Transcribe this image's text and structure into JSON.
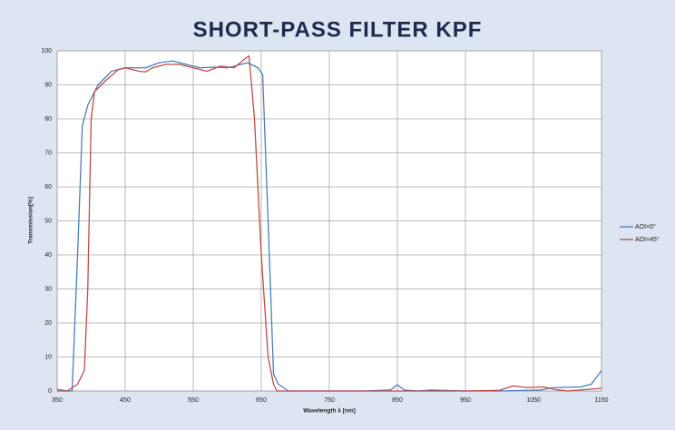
{
  "chart_data": {
    "type": "line",
    "title": "SHORT-PASS FILTER KPF",
    "x_label": "Wavelength λ [nm]",
    "y_label": "Transmission[%]",
    "xlim": [
      350,
      1150
    ],
    "xticks": [
      350,
      450,
      550,
      650,
      750,
      850,
      950,
      1050,
      1150
    ],
    "ylim": [
      0,
      100
    ],
    "yticks": [
      0,
      10,
      20,
      30,
      40,
      50,
      60,
      70,
      80,
      90,
      100
    ],
    "grid": true,
    "legend": "right",
    "series": [
      {
        "name": "AOI=0°",
        "color": "#4a7ebb",
        "x": [
          350,
          365,
          372,
          380,
          387,
          395,
          410,
          430,
          450,
          480,
          500,
          520,
          540,
          560,
          580,
          600,
          620,
          630,
          645,
          652,
          660,
          668,
          675,
          690,
          750,
          800,
          840,
          850,
          860,
          880,
          900,
          950,
          1000,
          1060,
          1080,
          1120,
          1135,
          1150
        ],
        "values": [
          0.5,
          0,
          0,
          40,
          78,
          84,
          90,
          94,
          95,
          95,
          96.5,
          97,
          96,
          95,
          95.2,
          95,
          96,
          96.5,
          95,
          93,
          50,
          5,
          2,
          0,
          0,
          0,
          0.3,
          1.8,
          0.3,
          0,
          0.3,
          0,
          0,
          0.3,
          1,
          1.2,
          2,
          6
        ]
      },
      {
        "name": "AOI=45°",
        "color": "#be4b48",
        "x": [
          350,
          365,
          380,
          390,
          395,
          400,
          405,
          420,
          440,
          450,
          470,
          480,
          490,
          510,
          530,
          550,
          570,
          590,
          610,
          625,
          632,
          640,
          650,
          660,
          668,
          673,
          750,
          850,
          950,
          1000,
          1020,
          1040,
          1065,
          1080,
          1100,
          1150
        ],
        "values": [
          0,
          0,
          2,
          6,
          30,
          80,
          88,
          91,
          94.5,
          95,
          94,
          93.8,
          95,
          96,
          96,
          95,
          94,
          95.5,
          95,
          97.5,
          98.5,
          80,
          40,
          10,
          2,
          0,
          0,
          0,
          0,
          0.2,
          1.5,
          1,
          1.2,
          0.5,
          0,
          0.8
        ]
      }
    ]
  }
}
